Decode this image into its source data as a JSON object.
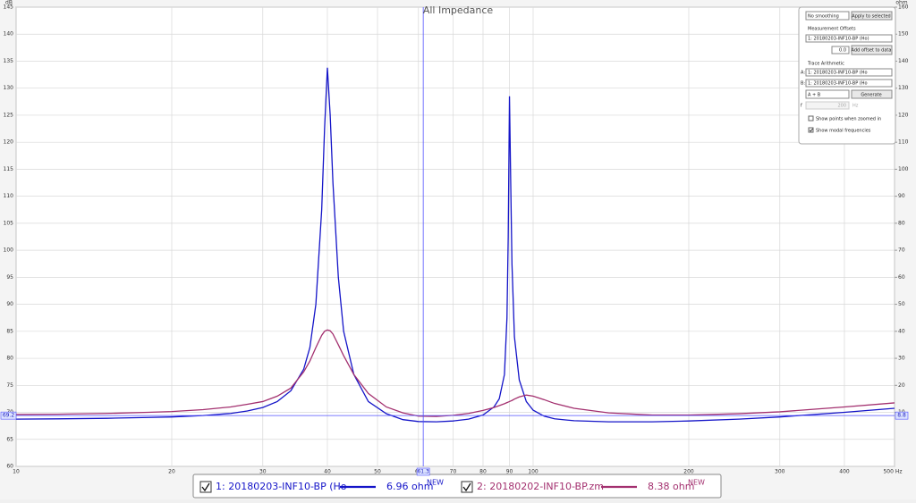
{
  "chart_data": {
    "type": "line",
    "title": "All Impedance",
    "y_unit": "dB",
    "y2_unit": "ohm",
    "xscale": "log",
    "grid": true,
    "xlim": [
      10,
      500
    ],
    "xticks": [
      10,
      20,
      30,
      40,
      50,
      60,
      70,
      80,
      90,
      100,
      200,
      300,
      400,
      {
        "value": 500,
        "label": "500 Hz"
      }
    ],
    "ylim": [
      60,
      145
    ],
    "yticks": [
      60,
      65,
      70,
      75,
      80,
      85,
      90,
      95,
      100,
      105,
      110,
      115,
      120,
      125,
      130,
      135,
      140,
      145
    ],
    "y2lim": [
      -10,
      160
    ],
    "y2ticks": [
      10,
      20,
      30,
      40,
      50,
      60,
      70,
      80,
      90,
      100,
      110,
      120,
      130,
      140,
      150,
      160
    ],
    "x": [
      10,
      12,
      15,
      18,
      20,
      23,
      26,
      28,
      30,
      32,
      34,
      36,
      37,
      38,
      39,
      39.5,
      40,
      40.5,
      41,
      42,
      43,
      45,
      48,
      52,
      56,
      60,
      65,
      70,
      75,
      80,
      84,
      86,
      88,
      89,
      89.5,
      90,
      90.5,
      91,
      92,
      94,
      97,
      100,
      105,
      110,
      120,
      140,
      170,
      200,
      250,
      300,
      400,
      500
    ],
    "series": [
      {
        "name": "1: 20180203-INF10-BP (Ho",
        "color": "#1414c8",
        "axis": "y2",
        "reading": "6.96 ohm",
        "tag": "NEW",
        "values": [
          7.5,
          7.6,
          7.8,
          8.1,
          8.3,
          8.8,
          9.6,
          10.5,
          11.8,
          14,
          18,
          26,
          34,
          50,
          85,
          115,
          137.6,
          120,
          95,
          60,
          40,
          24,
          14,
          9.5,
          7.3,
          6.6,
          6.5,
          6.8,
          7.5,
          9,
          12,
          15,
          24,
          45,
          75,
          127,
          95,
          65,
          38,
          22,
          14,
          10.8,
          8.6,
          7.6,
          6.9,
          6.5,
          6.5,
          6.8,
          7.5,
          8.3,
          10,
          11.5
        ]
      },
      {
        "name": "2: 20180202-INF10-BP.zm",
        "color": "#a3306f",
        "axis": "y2",
        "reading": "8.38 ohm",
        "tag": "NEW",
        "values": [
          9.2,
          9.3,
          9.6,
          10,
          10.3,
          11,
          12,
          13,
          14,
          16,
          19,
          25,
          29,
          34,
          38.5,
          40,
          40.5,
          40.2,
          39,
          35,
          31,
          24,
          17,
          12,
          9.8,
          8.6,
          8.5,
          8.9,
          9.6,
          10.7,
          11.8,
          12.5,
          13.2,
          13.6,
          13.8,
          14,
          14.2,
          14.4,
          14.9,
          15.7,
          16.4,
          16,
          14.7,
          13.3,
          11.5,
          9.8,
          9,
          9,
          9.5,
          10.2,
          12,
          13.5
        ]
      }
    ],
    "cursor": {
      "x": 61.3,
      "y2": 8.8,
      "y": 69.2
    }
  },
  "controls": {
    "smoothing": "No smoothing",
    "apply": "Apply to selected",
    "offsets_title": "Measurement Offsets",
    "offset_target": "1: 20180203-INF10-BP (Ho)",
    "offset_value": "0.0",
    "add_offset": "Add offset to data",
    "arith_title": "Trace Arithmetic",
    "a_label": "A:",
    "a_value": "1: 20180203-INF10-BP (Ho",
    "b_label": "B:",
    "b_value": "1: 20180203-INF10-BP (Ho",
    "operation": "A + B",
    "generate": "Generate",
    "f_label": "f",
    "f_value": "200",
    "f_unit": "Hz",
    "show_points": "Show points when zoomed in",
    "show_modal": "Show modal frequencies"
  }
}
